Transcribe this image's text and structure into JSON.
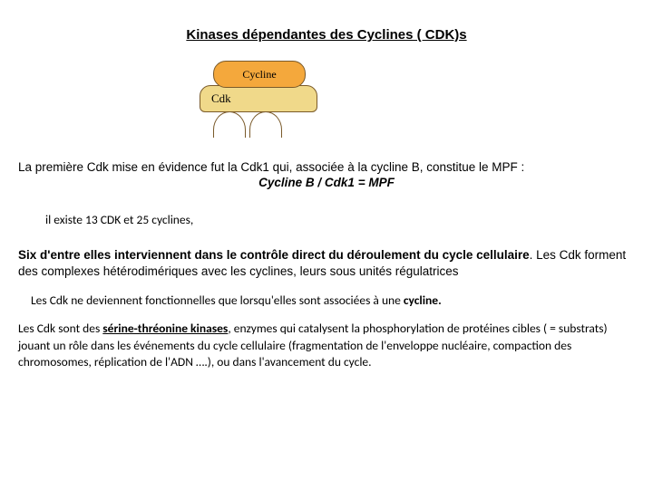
{
  "title": "Kinases dépendantes des Cyclines ( CDK)s",
  "diagram": {
    "cycline_label": "Cycline",
    "cdk_label": "Cdk"
  },
  "line1": "La première Cdk mise en évidence fut la Cdk1 qui, associée à la cycline B, constitue le MPF :",
  "formula": "Cycline B / Cdk1 = MPF",
  "indent_line": "il existe 13 CDK et 25 cyclines,",
  "para1_bold": "Six d'entre elles interviennent dans le contrôle direct du déroulement du cycle cellulaire",
  "para1_tail": ". Les Cdk forment des complexes hétérodimériques avec les cyclines, leurs sous unités régulatrices",
  "para2_pre": "Les Cdk ne deviennent fonctionnelles que lorsqu'elles sont associées à une ",
  "para2_bold": "cycline.",
  "para3_pre": "Les Cdk sont des ",
  "para3_bold": "sérine-thréonine kinases",
  "para3_tail": ", enzymes qui catalysent la phosphorylation de protéines cibles ( = substrats) jouant un rôle dans les événements du cycle cellulaire (fragmentation de l'enveloppe nucléaire, compaction des chromosomes, réplication de l'ADN ….), ou dans l'avancement du cycle."
}
